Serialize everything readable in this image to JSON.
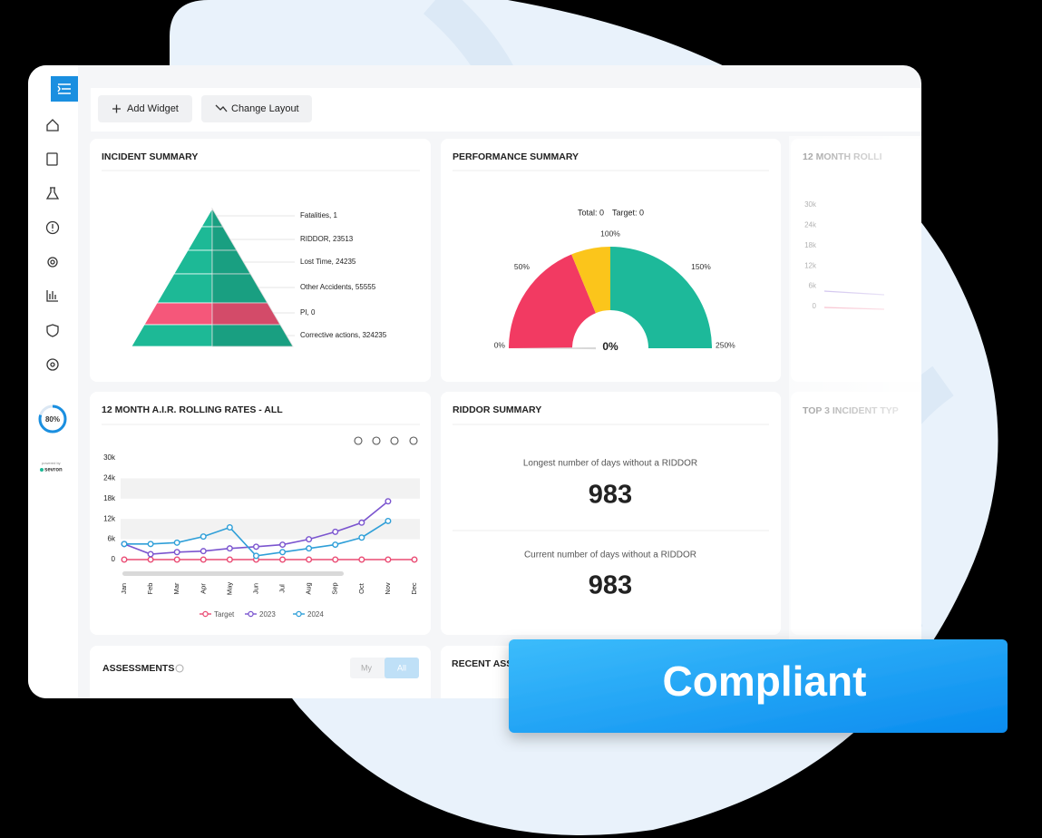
{
  "toolbar": {
    "add_widget": "Add Widget",
    "change_layout": "Change Layout"
  },
  "sidebar": {
    "progress": {
      "value": 80,
      "label": "80%"
    },
    "powered_by": "powered by",
    "brand": "sevron"
  },
  "incident_summary": {
    "title": "INCIDENT SUMMARY",
    "levels": [
      {
        "label": "Fatalities, 1",
        "color": "#1db996"
      },
      {
        "label": "RIDDOR, 23513",
        "color": "#1db996"
      },
      {
        "label": "Lost Time, 24235",
        "color": "#1db996"
      },
      {
        "label": "Other Accidents, 55555",
        "color": "#1db996"
      },
      {
        "label": "PI, 0",
        "color": "#f5577a"
      },
      {
        "label": "Corrective actions, 324235",
        "color": "#1db996"
      }
    ]
  },
  "performance_summary": {
    "title": "PERFORMANCE SUMMARY",
    "total": "Total: 0",
    "target": "Target: 0",
    "gauge": {
      "value": 0,
      "value_label": "0%",
      "ticks": [
        {
          "value": 0,
          "label": "0%"
        },
        {
          "value": 50,
          "label": "50%"
        },
        {
          "value": 100,
          "label": "100%"
        },
        {
          "value": 150,
          "label": "150%"
        },
        {
          "value": 250,
          "label": "250%"
        }
      ],
      "bands": [
        {
          "from": 0,
          "to": 75,
          "color": "#f23a62"
        },
        {
          "from": 75,
          "to": 100,
          "color": "#fbc51b"
        },
        {
          "from": 100,
          "to": 250,
          "color": "#1db99a"
        }
      ]
    }
  },
  "air_rates": {
    "title": "12 MONTH A.I.R. ROLLING RATES - ALL",
    "chart_data": {
      "type": "line",
      "categories": [
        "Jan",
        "Feb",
        "Mar",
        "Apr",
        "May",
        "Jun",
        "Jul",
        "Aug",
        "Sep",
        "Oct",
        "Nov",
        "Dec"
      ],
      "series": [
        {
          "name": "Target",
          "color": "#ea4c74",
          "values": [
            0,
            0,
            0,
            0,
            0,
            0,
            0,
            0,
            0,
            0,
            0,
            0
          ]
        },
        {
          "name": "2023",
          "color": "#7b55cf",
          "values": [
            4600,
            1600,
            2200,
            2500,
            3300,
            3800,
            4400,
            6000,
            8200,
            10900,
            17200,
            null
          ]
        },
        {
          "name": "2024",
          "color": "#2f9fd8",
          "values": [
            4600,
            4600,
            5000,
            6800,
            9500,
            1100,
            2200,
            3300,
            4400,
            6500,
            11400,
            null
          ]
        }
      ],
      "ylim": [
        0,
        30000
      ],
      "yticks": [
        {
          "value": 0,
          "label": "0"
        },
        {
          "value": 6000,
          "label": "6k"
        },
        {
          "value": 12000,
          "label": "12k"
        },
        {
          "value": 18000,
          "label": "18k"
        },
        {
          "value": 24000,
          "label": "24k"
        },
        {
          "value": 30000,
          "label": "30k"
        }
      ],
      "grid": true
    }
  },
  "riddor_summary": {
    "title": "RIDDOR SUMMARY",
    "longest_label": "Longest number of days without a RIDDOR",
    "longest": 983,
    "current_label": "Current number of days without a RIDDOR",
    "current": 983
  },
  "faded": {
    "rolling_title": "12 MONTH ROLLI",
    "rolling_yticks": [
      "30k",
      "24k",
      "18k",
      "12k",
      "6k",
      "0"
    ],
    "top3_title": "TOP 3 INCIDENT TYP"
  },
  "assessments": {
    "title": "ASSESSMENTS",
    "my": "My",
    "all": "All"
  },
  "recent_title": "RECENT ASS",
  "badge": "Compliant"
}
